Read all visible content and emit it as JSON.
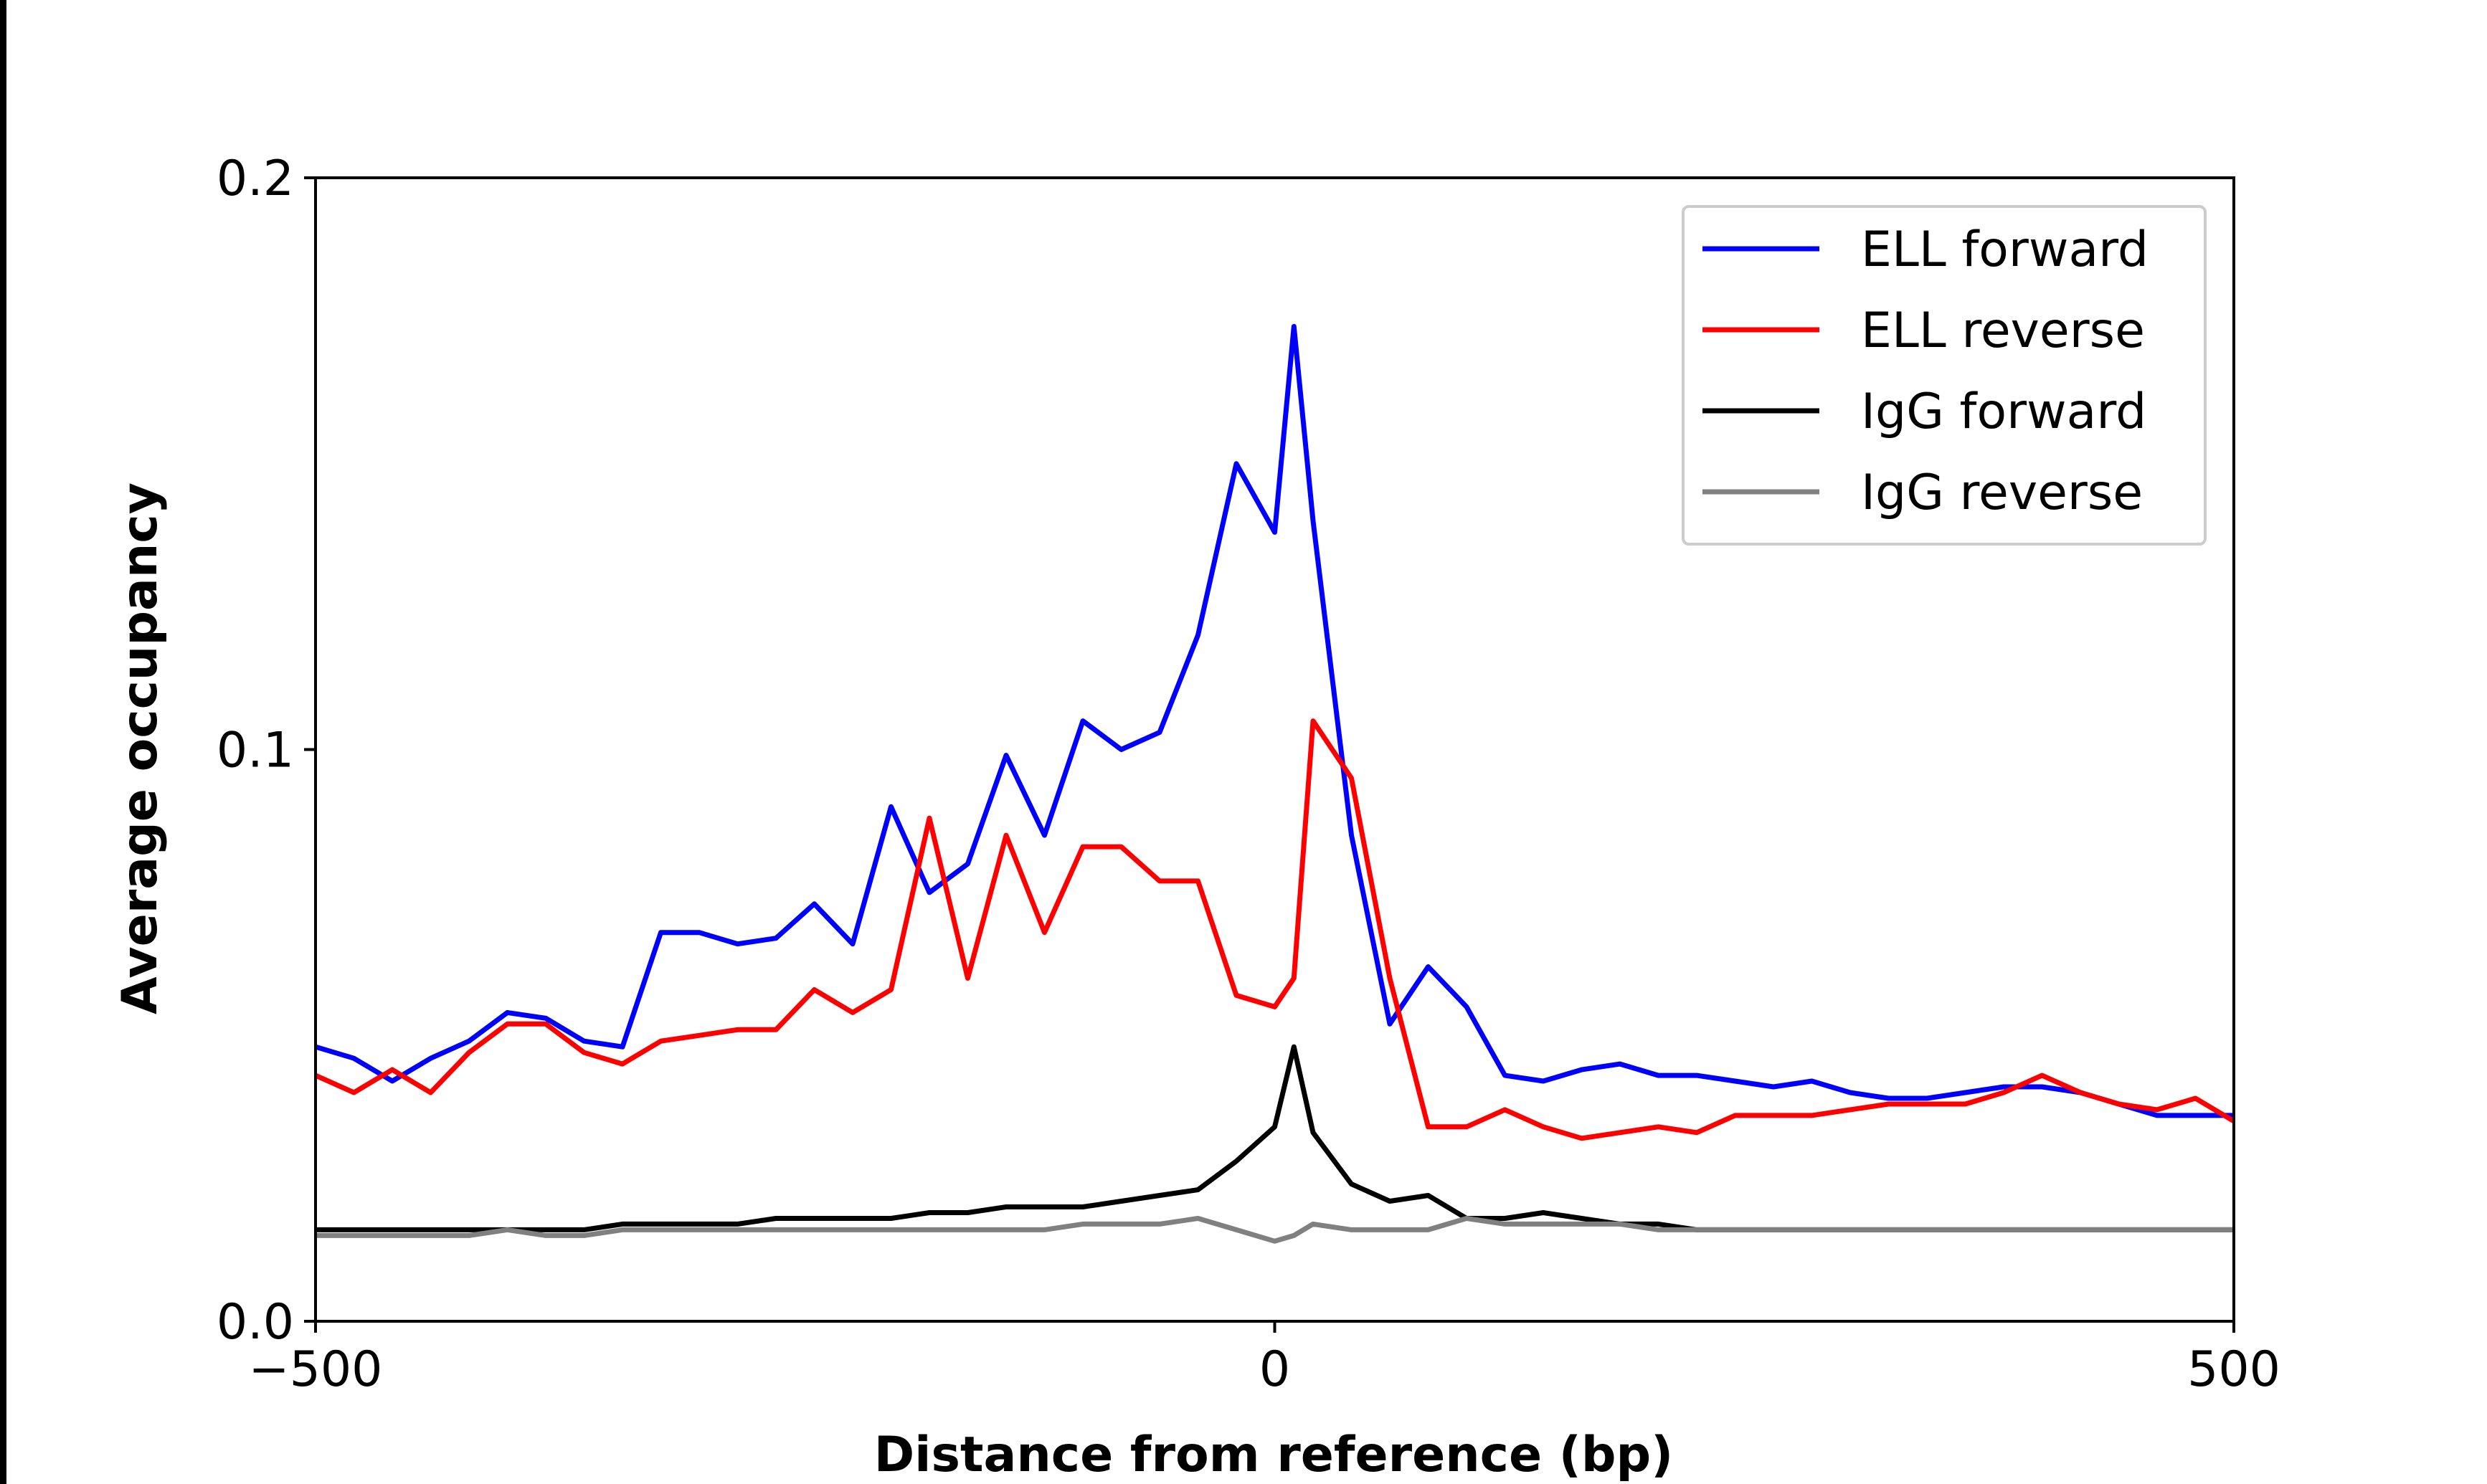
{
  "chart_data": {
    "type": "line",
    "x_label": "Distance from reference (bp)",
    "y_label": "Average occupancy",
    "x": [
      -500,
      -480,
      -460,
      -440,
      -420,
      -400,
      -380,
      -360,
      -340,
      -320,
      -300,
      -280,
      -260,
      -240,
      -220,
      -200,
      -180,
      -160,
      -140,
      -120,
      -100,
      -80,
      -60,
      -40,
      -20,
      0,
      10,
      20,
      40,
      60,
      80,
      100,
      120,
      140,
      160,
      180,
      200,
      220,
      240,
      260,
      280,
      300,
      320,
      340,
      360,
      380,
      400,
      420,
      440,
      460,
      480,
      500
    ],
    "series": [
      {
        "name": "ELL forward",
        "color": "#0000ff",
        "values": [
          0.048,
          0.046,
          0.042,
          0.046,
          0.049,
          0.054,
          0.053,
          0.049,
          0.048,
          0.068,
          0.068,
          0.066,
          0.067,
          0.073,
          0.066,
          0.09,
          0.075,
          0.08,
          0.099,
          0.085,
          0.105,
          0.1,
          0.103,
          0.12,
          0.15,
          0.138,
          0.174,
          0.14,
          0.085,
          0.052,
          0.062,
          0.055,
          0.043,
          0.042,
          0.044,
          0.045,
          0.043,
          0.043,
          0.042,
          0.041,
          0.042,
          0.04,
          0.039,
          0.039,
          0.04,
          0.041,
          0.041,
          0.04,
          0.038,
          0.036,
          0.036,
          0.036
        ]
      },
      {
        "name": "ELL reverse",
        "color": "#ff0000",
        "values": [
          0.043,
          0.04,
          0.044,
          0.04,
          0.047,
          0.052,
          0.052,
          0.047,
          0.045,
          0.049,
          0.05,
          0.051,
          0.051,
          0.058,
          0.054,
          0.058,
          0.088,
          0.06,
          0.085,
          0.068,
          0.083,
          0.083,
          0.077,
          0.077,
          0.057,
          0.055,
          0.06,
          0.105,
          0.095,
          0.06,
          0.034,
          0.034,
          0.037,
          0.034,
          0.032,
          0.033,
          0.034,
          0.033,
          0.036,
          0.036,
          0.036,
          0.037,
          0.038,
          0.038,
          0.038,
          0.04,
          0.043,
          0.04,
          0.038,
          0.037,
          0.039,
          0.035
        ]
      },
      {
        "name": "IgG forward",
        "color": "#000000",
        "values": [
          0.016,
          0.016,
          0.016,
          0.016,
          0.016,
          0.016,
          0.016,
          0.016,
          0.017,
          0.017,
          0.017,
          0.017,
          0.018,
          0.018,
          0.018,
          0.018,
          0.019,
          0.019,
          0.02,
          0.02,
          0.02,
          0.021,
          0.022,
          0.023,
          0.028,
          0.034,
          0.048,
          0.033,
          0.024,
          0.021,
          0.022,
          0.018,
          0.018,
          0.019,
          0.018,
          0.017,
          0.017,
          0.016,
          0.016,
          0.016,
          0.016,
          0.016,
          0.016,
          0.016,
          0.016,
          0.016,
          0.016,
          0.016,
          0.016,
          0.016,
          0.016,
          0.016
        ]
      },
      {
        "name": "IgG reverse",
        "color": "#808080",
        "values": [
          0.015,
          0.015,
          0.015,
          0.015,
          0.015,
          0.016,
          0.015,
          0.015,
          0.016,
          0.016,
          0.016,
          0.016,
          0.016,
          0.016,
          0.016,
          0.016,
          0.016,
          0.016,
          0.016,
          0.016,
          0.017,
          0.017,
          0.017,
          0.018,
          0.016,
          0.014,
          0.015,
          0.017,
          0.016,
          0.016,
          0.016,
          0.018,
          0.017,
          0.017,
          0.017,
          0.017,
          0.016,
          0.016,
          0.016,
          0.016,
          0.016,
          0.016,
          0.016,
          0.016,
          0.016,
          0.016,
          0.016,
          0.016,
          0.016,
          0.016,
          0.016,
          0.016
        ]
      }
    ],
    "xlim": [
      -500,
      500
    ],
    "ylim": [
      0,
      0.2
    ],
    "xticks": [
      {
        "value": -500,
        "label": "−500"
      },
      0,
      500
    ],
    "yticks": [
      {
        "value": 0,
        "label": "0.0"
      },
      0.1,
      0.2
    ],
    "legend": "upper right",
    "grid": false
  }
}
